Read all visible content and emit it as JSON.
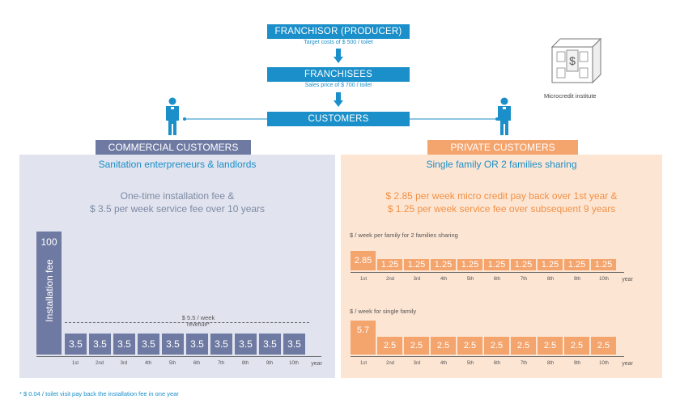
{
  "flow": {
    "franchisor": "FRANCHISOR (PRODUCER)",
    "franchisor_sub": "Target costs of $ 500 / toilet",
    "franchisees": "FRANCHISEES",
    "franchisees_sub": "Sales price of $ 700 / toilet",
    "customers": "CUSTOMERS",
    "microcredit": "Microcredit institute",
    "colors": {
      "flow": "#1a8fc9"
    }
  },
  "commercial": {
    "header": "COMMERCIAL CUSTOMERS",
    "subtitle": "Sanitation enterpreneurs & landlords",
    "desc_line1": "One-time installation fee &",
    "desc_line2": "$ 3.5 per week service fee over 10 years",
    "install_value": "100",
    "install_label": "Installation fee",
    "week_note_line1": "$ 5.5 / week",
    "week_note_line2": "revenue*",
    "bars": [
      "3.5",
      "3.5",
      "3.5",
      "3.5",
      "3.5",
      "3.5",
      "3.5",
      "3.5",
      "3.5",
      "3.5"
    ],
    "years": [
      "1st",
      "2nd",
      "3rd",
      "4th",
      "5th",
      "6th",
      "7th",
      "8th",
      "9th",
      "10th"
    ],
    "axis_label": "year",
    "color": "#6f7aa3"
  },
  "private": {
    "header": "PRIVATE CUSTOMERS",
    "subtitle": "Single family OR 2 families sharing",
    "desc_line1": "$ 2.85 per week micro credit pay back over 1st year &",
    "desc_line2": "$ 1.25 per week service fee over subsequent 9 years",
    "shared_label": "$ / week per family for 2 families sharing",
    "shared_bars": [
      "2.85",
      "1.25",
      "1.25",
      "1.25",
      "1.25",
      "1.25",
      "1.25",
      "1.25",
      "1.25",
      "1.25"
    ],
    "single_label": "$ / week for single family",
    "single_bars": [
      "5.7",
      "2.5",
      "2.5",
      "2.5",
      "2.5",
      "2.5",
      "2.5",
      "2.5",
      "2.5",
      "2.5"
    ],
    "years": [
      "1st",
      "2nd",
      "3rd",
      "4th",
      "5th",
      "6th",
      "7th",
      "8th",
      "9th",
      "10th"
    ],
    "axis_label": "year",
    "color": "#f4a46d"
  },
  "footnote": "* $ 0.04 / toilet visit pay back the installation fee in one year"
}
